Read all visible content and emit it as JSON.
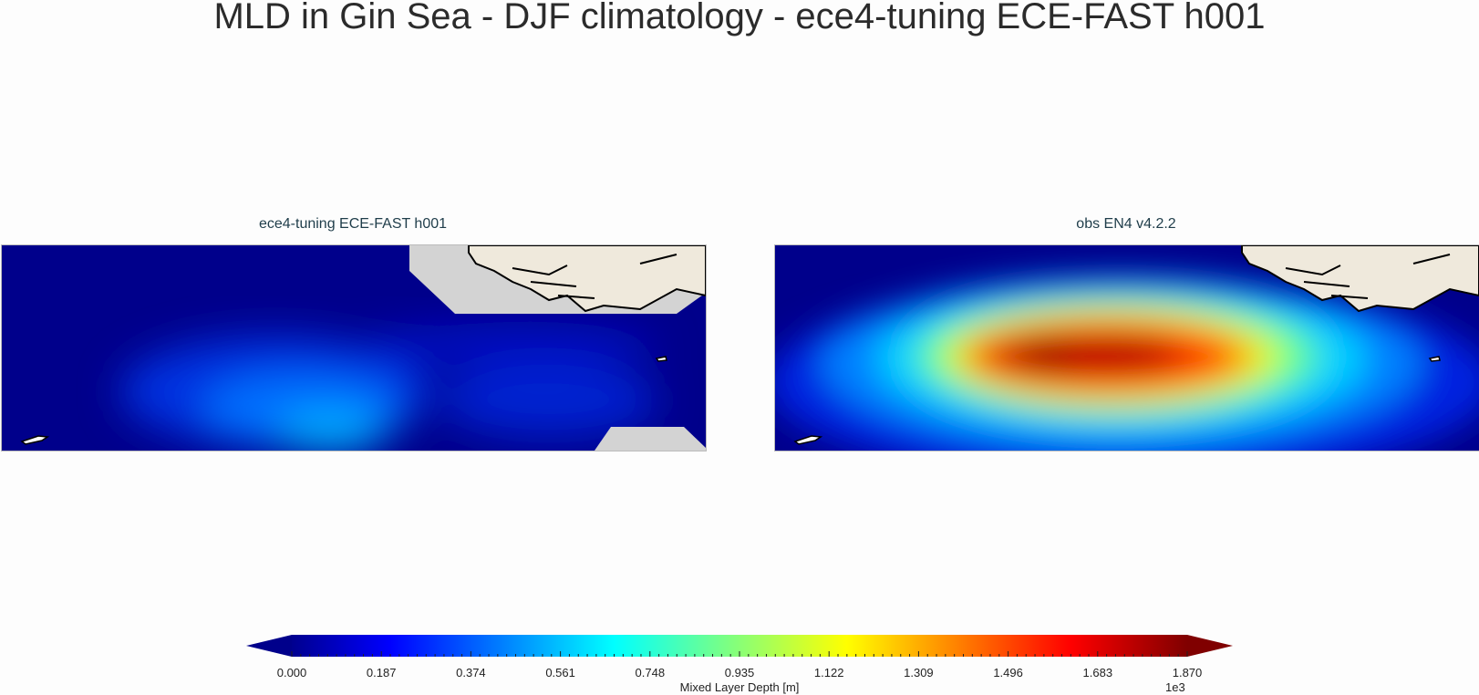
{
  "page": {
    "title": "MLD in Gin Sea - DJF climatology - ece4-tuning ECE-FAST h001"
  },
  "panels": [
    {
      "title": "ece4-tuning ECE-FAST h001"
    },
    {
      "title": "obs EN4 v4.2.2"
    }
  ],
  "colorbar": {
    "label": "Mixed Layer Depth [m]",
    "exponent": "1e3",
    "ticks": [
      "0.000",
      "0.187",
      "0.374",
      "0.561",
      "0.748",
      "0.935",
      "1.122",
      "1.309",
      "1.496",
      "1.683",
      "1.870"
    ],
    "colormap": "jet",
    "extend": "both"
  },
  "chart_data": [
    {
      "type": "heatmap",
      "title": "ece4-tuning ECE-FAST h001",
      "field": "Mixed Layer Depth [m]",
      "vmin": 0,
      "vmax": 1870,
      "description_values": {
        "background_mld": 50,
        "max_mld": 700
      }
    },
    {
      "type": "heatmap",
      "title": "obs EN4 v4.2.2",
      "field": "Mixed Layer Depth [m]",
      "vmin": 0,
      "vmax": 1870,
      "description_values": {
        "background_mld": 150,
        "max_mld": 1800
      }
    }
  ],
  "colors": {
    "land": "#efe9dc",
    "missing": "#d3d3d3",
    "coastline": "#000000"
  }
}
